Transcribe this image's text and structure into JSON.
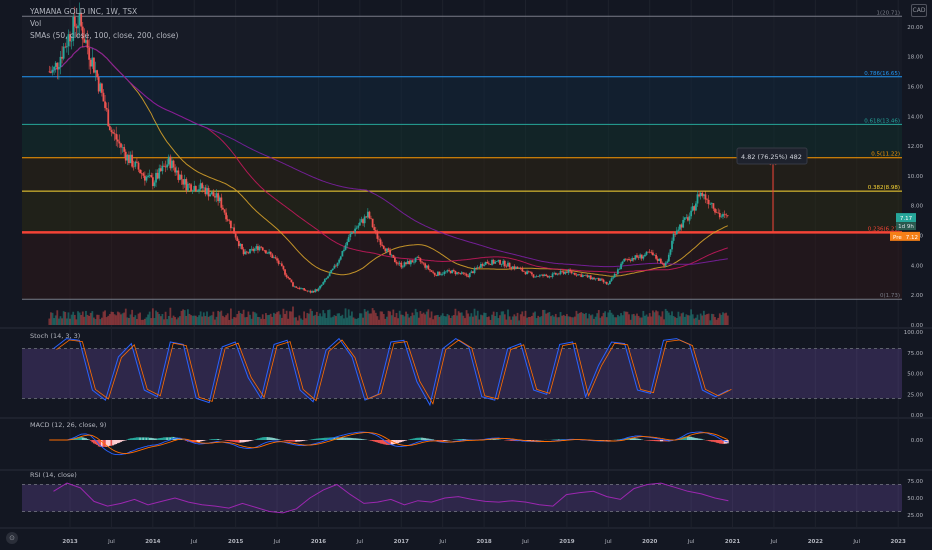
{
  "header": {
    "title": "YAMANA GOLD INC, 1W, TSX",
    "vol_label": "Vol",
    "sma_label": "SMAs (50, close, 100, close, 200, close)"
  },
  "currency": "CAD",
  "measure_label": "4.82 (76.25%) 482",
  "price_badges": {
    "close": "7.17",
    "countdown": "1d 9h",
    "pre_label": "Pre",
    "pre_value": "7.12"
  },
  "panes": {
    "stoch": "Stoch (14, 3, 3)",
    "macd": "MACD (12, 26, close, 9)",
    "rsi": "RSI (14, close)"
  },
  "colors": {
    "bull": "#26a69a",
    "bear": "#ef5350",
    "sma50": "#d4a02a",
    "sma100": "#c2185b",
    "sma200": "#7b1fa2",
    "fib_1": "#787b86",
    "fib_0786": "#2196f3",
    "fib_0618": "#26a69a",
    "fib_05": "#ff9800",
    "fib_0382": "#fdd835",
    "fib_0236": "#f44336",
    "stoch_k": "#2962ff",
    "stoch_d": "#ff6d00",
    "rsi": "#9c27b0",
    "band": "#7e57c2"
  },
  "chart_data": [
    {
      "type": "candlestick",
      "title": "YAMANA GOLD INC, 1W, TSX",
      "y_ticks": [
        "20.00",
        "18.00",
        "16.00",
        "14.00",
        "12.00",
        "10.00",
        "8.00",
        "6.00",
        "4.00",
        "2.00",
        "0.00"
      ],
      "ylim": [
        0,
        21.8
      ],
      "x_ticks": [
        "2013",
        "Jul",
        "2014",
        "Jul",
        "2015",
        "Jul",
        "2016",
        "Jul",
        "2017",
        "Jul",
        "2018",
        "Jul",
        "2019",
        "Jul",
        "2020",
        "Jul",
        "2021",
        "Jul",
        "2022",
        "Jul",
        "2023"
      ],
      "fib_levels": [
        {
          "label": "1(20.71)",
          "value": 20.71
        },
        {
          "label": "0.786(16.65)",
          "value": 16.65
        },
        {
          "label": "0.618(13.46)",
          "value": 13.46
        },
        {
          "label": "0.5(11.22)",
          "value": 11.22
        },
        {
          "label": "0.382(8.98)",
          "value": 8.98
        },
        {
          "label": "0.236(6.21)",
          "value": 6.21
        },
        {
          "label": "0(1.73)",
          "value": 1.73
        }
      ],
      "series_close": [
        {
          "date": "2012.8",
          "value": 17.0
        },
        {
          "date": "2013.0",
          "value": 19.6
        },
        {
          "date": "2013.1",
          "value": 20.5
        },
        {
          "date": "2013.3",
          "value": 17.2
        },
        {
          "date": "2013.5",
          "value": 13.0
        },
        {
          "date": "2013.7",
          "value": 11.2
        },
        {
          "date": "2013.9",
          "value": 10.0
        },
        {
          "date": "2014.0",
          "value": 9.6
        },
        {
          "date": "2014.2",
          "value": 11.0
        },
        {
          "date": "2014.4",
          "value": 9.4
        },
        {
          "date": "2014.6",
          "value": 9.2
        },
        {
          "date": "2014.8",
          "value": 8.4
        },
        {
          "date": "2015.0",
          "value": 6.0
        },
        {
          "date": "2015.1",
          "value": 4.7
        },
        {
          "date": "2015.3",
          "value": 5.3
        },
        {
          "date": "2015.5",
          "value": 4.3
        },
        {
          "date": "2015.7",
          "value": 2.6
        },
        {
          "date": "2015.9",
          "value": 2.2
        },
        {
          "date": "2016.0",
          "value": 2.4
        },
        {
          "date": "2016.2",
          "value": 3.9
        },
        {
          "date": "2016.4",
          "value": 6.2
        },
        {
          "date": "2016.6",
          "value": 7.4
        },
        {
          "date": "2016.7",
          "value": 6.0
        },
        {
          "date": "2016.9",
          "value": 4.4
        },
        {
          "date": "2017.0",
          "value": 4.0
        },
        {
          "date": "2017.2",
          "value": 4.4
        },
        {
          "date": "2017.4",
          "value": 3.4
        },
        {
          "date": "2017.6",
          "value": 3.6
        },
        {
          "date": "2017.8",
          "value": 3.3
        },
        {
          "date": "2018.0",
          "value": 4.2
        },
        {
          "date": "2018.2",
          "value": 4.2
        },
        {
          "date": "2018.4",
          "value": 3.8
        },
        {
          "date": "2018.6",
          "value": 3.3
        },
        {
          "date": "2018.8",
          "value": 3.3
        },
        {
          "date": "2019.0",
          "value": 3.6
        },
        {
          "date": "2019.2",
          "value": 3.3
        },
        {
          "date": "2019.4",
          "value": 3.0
        },
        {
          "date": "2019.5",
          "value": 2.7
        },
        {
          "date": "2019.7",
          "value": 4.4
        },
        {
          "date": "2019.9",
          "value": 4.6
        },
        {
          "date": "2020.0",
          "value": 4.8
        },
        {
          "date": "2020.2",
          "value": 4.0
        },
        {
          "date": "2020.3",
          "value": 6.3
        },
        {
          "date": "2020.5",
          "value": 7.4
        },
        {
          "date": "2020.6",
          "value": 8.9
        },
        {
          "date": "2020.75",
          "value": 8.2
        },
        {
          "date": "2020.85",
          "value": 7.3
        },
        {
          "date": "2020.95",
          "value": 7.17
        }
      ]
    },
    {
      "type": "line",
      "title": "Stoch (14, 3, 3)",
      "y_ticks": [
        "100.00",
        "75.00",
        "50.00",
        "25.00",
        "0.00"
      ],
      "bands": [
        80,
        20
      ],
      "series": [
        {
          "name": "",
          "values": [
            80,
            92,
            90,
            30,
            18,
            70,
            86,
            30,
            22,
            88,
            85,
            20,
            15,
            82,
            88,
            45,
            20,
            85,
            90,
            30,
            16,
            78,
            92,
            70,
            18,
            25,
            88,
            90,
            40,
            12,
            80,
            92,
            82,
            22,
            18,
            80,
            86,
            30,
            25,
            85,
            88,
            22,
            60,
            88,
            86,
            30,
            26,
            90,
            92,
            85,
            30,
            22,
            30
          ]
        }
      ]
    },
    {
      "type": "bar",
      "title": "MACD (12, 26, close, 9)",
      "y_ticks": [
        "0.00"
      ]
    },
    {
      "type": "line",
      "title": "RSI (14, close)",
      "y_ticks": [
        "75.00",
        "50.00",
        "25.00"
      ],
      "bands": [
        70,
        30
      ],
      "series": [
        {
          "name": "",
          "values": [
            60,
            72,
            65,
            45,
            38,
            42,
            48,
            40,
            45,
            50,
            44,
            40,
            38,
            35,
            42,
            36,
            30,
            28,
            34,
            50,
            62,
            70,
            55,
            42,
            44,
            48,
            40,
            46,
            44,
            50,
            52,
            48,
            45,
            44,
            46,
            44,
            40,
            38,
            55,
            58,
            60,
            52,
            48,
            64,
            70,
            72,
            66,
            60,
            56,
            50,
            46
          ]
        }
      ]
    }
  ]
}
